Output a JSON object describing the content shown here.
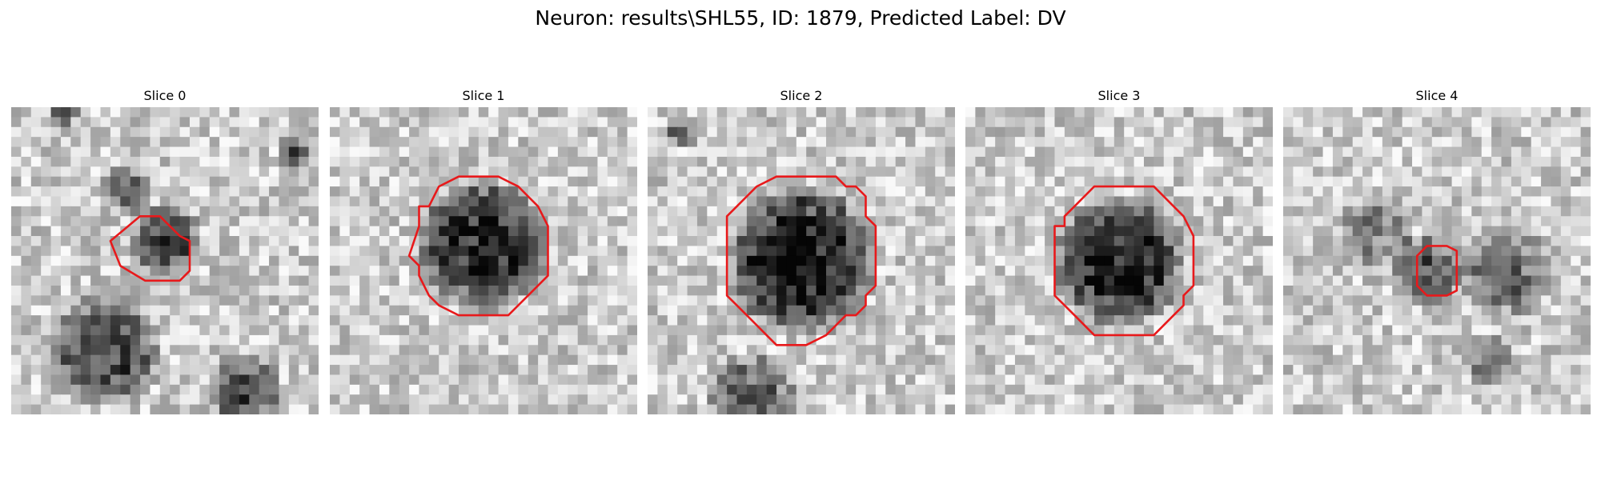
{
  "figure": {
    "suptitle": "Neuron: results\\SHL55, ID: 1879, Predicted Label: DV"
  },
  "panels": [
    {
      "title": "Slice 0",
      "contour_color": "#e8191b"
    },
    {
      "title": "Slice 1",
      "contour_color": "#e8191b"
    },
    {
      "title": "Slice 2",
      "contour_color": "#e8191b"
    },
    {
      "title": "Slice 3",
      "contour_color": "#e8191b"
    },
    {
      "title": "Slice 4",
      "contour_color": "#e8191b"
    }
  ],
  "colormap": "gray"
}
